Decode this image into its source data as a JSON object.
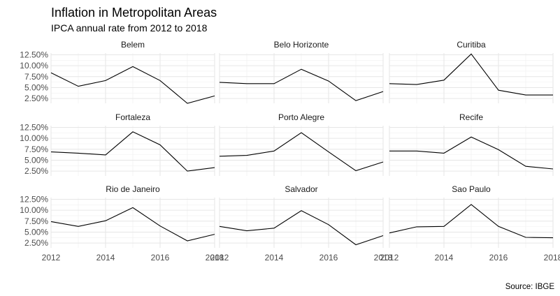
{
  "chart_data": {
    "type": "line",
    "title": "Inflation in Metropolitan Areas",
    "subtitle": "IPCA annual rate from 2012 to 2018",
    "caption": "Source: IBGE",
    "x": [
      2012,
      2013,
      2014,
      2015,
      2016,
      2017,
      2018
    ],
    "x_ticks": [
      "2012",
      "2014",
      "2016",
      "2018"
    ],
    "y_ticks": [
      "2.50%",
      "5.00%",
      "7.50%",
      "10.00%",
      "12.50%"
    ],
    "y_tick_values": [
      2.5,
      5.0,
      7.5,
      10.0,
      12.5
    ],
    "xlim": [
      2012,
      2018
    ],
    "ylim": [
      1.4,
      12.9
    ],
    "grid": true,
    "panels": [
      {
        "name": "Belem",
        "values": [
          8.4,
          5.3,
          6.6,
          9.8,
          6.6,
          1.4,
          3.1
        ]
      },
      {
        "name": "Belo Horizonte",
        "values": [
          6.2,
          5.9,
          5.9,
          9.2,
          6.5,
          2.0,
          4.1
        ]
      },
      {
        "name": "Curitiba",
        "values": [
          5.9,
          5.7,
          6.7,
          12.7,
          4.4,
          3.3,
          3.3
        ]
      },
      {
        "name": "Fortaleza",
        "values": [
          6.9,
          6.6,
          6.2,
          11.5,
          8.5,
          2.5,
          3.3
        ]
      },
      {
        "name": "Porto Alegre",
        "values": [
          5.9,
          6.1,
          7.1,
          11.3,
          6.9,
          2.6,
          4.6
        ]
      },
      {
        "name": "Recife",
        "values": [
          7.1,
          7.1,
          6.6,
          10.3,
          7.4,
          3.6,
          3.0
        ]
      },
      {
        "name": "Rio de Janeiro",
        "values": [
          7.4,
          6.3,
          7.6,
          10.6,
          6.4,
          3.0,
          4.5
        ]
      },
      {
        "name": "Salvador",
        "values": [
          6.3,
          5.3,
          5.9,
          9.9,
          6.7,
          2.1,
          4.2
        ]
      },
      {
        "name": "Sao Paulo",
        "values": [
          4.8,
          6.2,
          6.3,
          11.3,
          6.3,
          3.8,
          3.7
        ]
      }
    ]
  }
}
